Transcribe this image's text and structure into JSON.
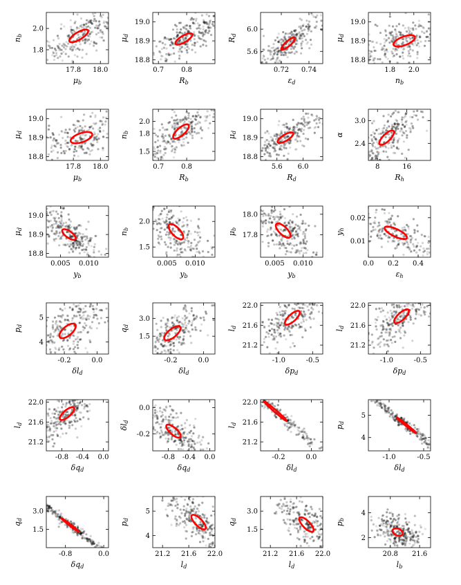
{
  "chart_data": [
    {
      "type": "scatter",
      "title": "",
      "xlabel": "μ_b",
      "ylabel": "n_b",
      "xticks": [
        "17.8",
        "18.0"
      ],
      "yticks": [
        "1.8",
        "2.0"
      ],
      "xlim": [
        17.6,
        18.06
      ],
      "ylim": [
        1.67,
        2.15
      ],
      "center": [
        17.84,
        1.93
      ],
      "ellipse": {
        "rx": 0.07,
        "ry": 0.06,
        "corr": 0.75
      },
      "ellipse_color": "#ff0000"
    },
    {
      "type": "scatter",
      "title": "",
      "xlabel": "R_b",
      "ylabel": "μ_d",
      "xticks": [
        "0.7",
        "0.8"
      ],
      "yticks": [
        "18.8",
        "18.9",
        "19.0"
      ],
      "xlim": [
        0.68,
        0.9
      ],
      "ylim": [
        18.78,
        19.05
      ],
      "center": [
        0.79,
        18.91
      ],
      "ellipse": {
        "rx": 0.03,
        "ry": 0.03,
        "corr": 0.75
      },
      "ellipse_color": "#ff0000"
    },
    {
      "type": "scatter",
      "title": "",
      "xlabel": "ε_d",
      "ylabel": "R_d",
      "xticks": [
        "0.72",
        "0.74"
      ],
      "yticks": [
        "5.6",
        "6.0"
      ],
      "xlim": [
        0.705,
        0.75
      ],
      "ylim": [
        5.38,
        6.3
      ],
      "center": [
        0.725,
        5.74
      ],
      "ellipse": {
        "rx": 0.005,
        "ry": 0.11,
        "corr": 0.85
      },
      "ellipse_color": "#ff0000"
    },
    {
      "type": "scatter",
      "title": "",
      "xlabel": "n_b",
      "ylabel": "μ_d",
      "xticks": [
        "1.8",
        "2.0"
      ],
      "yticks": [
        "18.8",
        "18.9",
        "19.0"
      ],
      "xlim": [
        1.62,
        2.14
      ],
      "ylim": [
        18.78,
        19.05
      ],
      "center": [
        1.92,
        18.9
      ],
      "ellipse": {
        "rx": 0.09,
        "ry": 0.03,
        "corr": 0.6
      },
      "ellipse_color": "#ff0000"
    },
    {
      "type": "scatter",
      "title": "",
      "xlabel": "μ_b",
      "ylabel": "μ_d",
      "xticks": [
        "17.8",
        "18.0"
      ],
      "yticks": [
        "18.8",
        "18.9",
        "19.0"
      ],
      "xlim": [
        17.6,
        18.06
      ],
      "ylim": [
        18.78,
        19.05
      ],
      "center": [
        17.86,
        18.9
      ],
      "ellipse": {
        "rx": 0.08,
        "ry": 0.03,
        "corr": 0.55
      },
      "ellipse_color": "#ff0000"
    },
    {
      "type": "scatter",
      "title": "",
      "xlabel": "R_b",
      "ylabel": "n_b",
      "xticks": [
        "0.7",
        "0.8"
      ],
      "yticks": [
        "1.5",
        "1.8",
        "2.0"
      ],
      "xlim": [
        0.68,
        0.9
      ],
      "ylim": [
        1.35,
        2.2
      ],
      "center": [
        0.78,
        1.83
      ],
      "ellipse": {
        "rx": 0.028,
        "ry": 0.12,
        "corr": 0.75
      },
      "ellipse_color": "#ff0000"
    },
    {
      "type": "scatter",
      "title": "",
      "xlabel": "R_d",
      "ylabel": "μ_d",
      "xticks": [
        "5.6",
        "6.0"
      ],
      "yticks": [
        "18.8",
        "18.9",
        "19.0"
      ],
      "xlim": [
        5.35,
        6.3
      ],
      "ylim": [
        18.78,
        19.05
      ],
      "center": [
        5.73,
        18.9
      ],
      "ellipse": {
        "rx": 0.12,
        "ry": 0.028,
        "corr": 0.75
      },
      "ellipse_color": "#ff0000"
    },
    {
      "type": "scatter",
      "title": "",
      "xlabel": "R_h",
      "ylabel": "α",
      "xticks": [
        "8",
        "16"
      ],
      "yticks": [
        "2.4",
        "3.0"
      ],
      "xlim": [
        5.5,
        22.5
      ],
      "ylim": [
        1.95,
        3.3
      ],
      "center": [
        10.5,
        2.55
      ],
      "ellipse": {
        "rx": 2.0,
        "ry": 0.19,
        "corr": 0.75
      },
      "ellipse_color": "#ff0000"
    },
    {
      "type": "scatter",
      "title": "",
      "xlabel": "y_b",
      "ylabel": "μ_d",
      "xticks": [
        "0.005",
        "0.010"
      ],
      "yticks": [
        "18.8",
        "18.9",
        "19.0"
      ],
      "xlim": [
        0.0025,
        0.0135
      ],
      "ylim": [
        18.78,
        19.05
      ],
      "center": [
        0.0065,
        18.9
      ],
      "ellipse": {
        "rx": 0.0012,
        "ry": 0.028,
        "corr": -0.7
      },
      "ellipse_color": "#ff0000"
    },
    {
      "type": "scatter",
      "title": "",
      "xlabel": "y_b",
      "ylabel": "n_b",
      "xticks": [
        "0.005",
        "0.010"
      ],
      "yticks": [
        "1.5",
        "2.0"
      ],
      "xlim": [
        0.0025,
        0.0135
      ],
      "ylim": [
        1.3,
        2.3
      ],
      "center": [
        0.0066,
        1.8
      ],
      "ellipse": {
        "rx": 0.0013,
        "ry": 0.15,
        "corr": -0.7
      },
      "ellipse_color": "#ff0000"
    },
    {
      "type": "scatter",
      "title": "",
      "xlabel": "y_b",
      "ylabel": "μ_b",
      "xticks": [
        "0.005",
        "0.010"
      ],
      "yticks": [
        "17.8",
        "18.0"
      ],
      "xlim": [
        0.0025,
        0.0135
      ],
      "ylim": [
        17.58,
        18.08
      ],
      "center": [
        0.0065,
        17.84
      ],
      "ellipse": {
        "rx": 0.0013,
        "ry": 0.07,
        "corr": -0.7
      },
      "ellipse_color": "#ff0000"
    },
    {
      "type": "scatter",
      "title": "",
      "xlabel": "ε_h",
      "ylabel": "y_h",
      "xticks": [
        "0.0",
        "0.2",
        "0.4"
      ],
      "yticks": [
        "0.01",
        "0.02"
      ],
      "xlim": [
        0.0,
        0.5
      ],
      "ylim": [
        0.003,
        0.025
      ],
      "center": [
        0.22,
        0.0135
      ],
      "ellipse": {
        "rx": 0.09,
        "ry": 0.0027,
        "corr": -0.75
      },
      "ellipse_color": "#ff0000"
    },
    {
      "type": "scatter",
      "title": "",
      "xlabel": "δl_d",
      "ylabel": "p_d",
      "xticks": [
        "-0.2",
        "0.0"
      ],
      "yticks": [
        "4",
        "5"
      ],
      "xlim": [
        -0.31,
        0.07
      ],
      "ylim": [
        3.5,
        5.6
      ],
      "center": [
        -0.18,
        4.45
      ],
      "ellipse": {
        "rx": 0.05,
        "ry": 0.3,
        "corr": 0.65
      },
      "ellipse_color": "#ff0000"
    },
    {
      "type": "scatter",
      "title": "",
      "xlabel": "δl_d",
      "ylabel": "q_d",
      "xticks": [
        "-0.2",
        "0.0"
      ],
      "yticks": [
        "1.5",
        "3.0"
      ],
      "xlim": [
        -0.31,
        0.07
      ],
      "ylim": [
        0.0,
        4.3
      ],
      "center": [
        -0.19,
        1.75
      ],
      "ellipse": {
        "rx": 0.05,
        "ry": 0.6,
        "corr": 0.7
      },
      "ellipse_color": "#ff0000"
    },
    {
      "type": "scatter",
      "title": "",
      "xlabel": "δp_d",
      "ylabel": "l_d",
      "xticks": [
        "-1.0",
        "-0.5"
      ],
      "yticks": [
        "21.2",
        "21.6",
        "22.0"
      ],
      "xlim": [
        -1.27,
        -0.35
      ],
      "ylim": [
        21.02,
        22.05
      ],
      "center": [
        -0.8,
        21.75
      ],
      "ellipse": {
        "rx": 0.11,
        "ry": 0.14,
        "corr": 0.75
      },
      "ellipse_color": "#ff0000"
    },
    {
      "type": "scatter",
      "title": "",
      "xlabel": "δp_d",
      "ylabel": "l_d",
      "xticks": [
        "-1.0",
        "-0.5"
      ],
      "yticks": [
        "21.2",
        "21.6",
        "22.0"
      ],
      "xlim": [
        -1.27,
        -0.35
      ],
      "ylim": [
        21.02,
        22.05
      ],
      "center": [
        -0.78,
        21.78
      ],
      "ellipse": {
        "rx": 0.11,
        "ry": 0.14,
        "corr": 0.75
      },
      "ellipse_color": "#ff0000"
    },
    {
      "type": "scatter",
      "title": "",
      "xlabel": "δq_d",
      "ylabel": "l_d",
      "xticks": [
        "-0.8",
        "-0.4",
        "0.0"
      ],
      "yticks": [
        "21.2",
        "21.6",
        "22.0"
      ],
      "xlim": [
        -1.1,
        0.1
      ],
      "ylim": [
        21.02,
        22.05
      ],
      "center": [
        -0.7,
        21.77
      ],
      "ellipse": {
        "rx": 0.14,
        "ry": 0.13,
        "corr": 0.75
      },
      "ellipse_color": "#ff0000"
    },
    {
      "type": "scatter",
      "title": "",
      "xlabel": "δq_d",
      "ylabel": "δl_d",
      "xticks": [
        "-0.8",
        "-0.4",
        "0.0"
      ],
      "yticks": [
        "-0.2",
        "0.0"
      ],
      "xlim": [
        -1.1,
        0.1
      ],
      "ylim": [
        -0.33,
        0.06
      ],
      "center": [
        -0.7,
        -0.18
      ],
      "ellipse": {
        "rx": 0.14,
        "ry": 0.05,
        "corr": -0.75
      },
      "ellipse_color": "#ff0000"
    },
    {
      "type": "scatter",
      "title": "",
      "xlabel": "δl_d",
      "ylabel": "l_d",
      "xticks": [
        "-0.2",
        "0.0"
      ],
      "yticks": [
        "21.2",
        "21.6",
        "22.0"
      ],
      "xlim": [
        -0.31,
        0.07
      ],
      "ylim": [
        21.02,
        22.05
      ],
      "center": [
        -0.22,
        21.82
      ],
      "ellipse": {
        "rx": 0.07,
        "ry": 0.2,
        "corr": -0.99
      },
      "ellipse_color": "#ff0000"
    },
    {
      "type": "scatter",
      "title": "",
      "xlabel": "δl_d",
      "ylabel": "p_d",
      "xticks": [
        "-1.0",
        "-0.5"
      ],
      "yticks": [
        "4",
        "5"
      ],
      "xlim": [
        -1.3,
        -0.4
      ],
      "ylim": [
        3.4,
        5.7
      ],
      "center": [
        -0.75,
        4.55
      ],
      "ellipse": {
        "rx": 0.14,
        "ry": 0.35,
        "corr": -0.99
      },
      "ellipse_color": "#ff0000"
    },
    {
      "type": "scatter",
      "title": "",
      "xlabel": "δq_d",
      "ylabel": "q_d",
      "xticks": [
        "-0.8",
        "0.0"
      ],
      "yticks": [
        "1.5",
        "3.0"
      ],
      "xlim": [
        -1.2,
        0.1
      ],
      "ylim": [
        0.0,
        4.2
      ],
      "center": [
        -0.7,
        1.85
      ],
      "ellipse": {
        "rx": 0.18,
        "ry": 0.55,
        "corr": -0.99
      },
      "ellipse_color": "#ff0000"
    },
    {
      "type": "scatter",
      "title": "",
      "xlabel": "l_d",
      "ylabel": "p_d",
      "xticks": [
        "21.2",
        "21.6",
        "22.0"
      ],
      "yticks": [
        "4",
        "5"
      ],
      "xlim": [
        21.05,
        22.0
      ],
      "ylim": [
        3.5,
        5.6
      ],
      "center": [
        21.75,
        4.55
      ],
      "ellipse": {
        "rx": 0.11,
        "ry": 0.3,
        "corr": -0.75
      },
      "ellipse_color": "#ff0000"
    },
    {
      "type": "scatter",
      "title": "",
      "xlabel": "l_d",
      "ylabel": "q_d",
      "xticks": [
        "21.2",
        "21.6",
        "22.0"
      ],
      "yticks": [
        "1.5",
        "3.0"
      ],
      "xlim": [
        21.05,
        22.0
      ],
      "ylim": [
        0.0,
        4.2
      ],
      "center": [
        21.75,
        1.9
      ],
      "ellipse": {
        "rx": 0.11,
        "ry": 0.6,
        "corr": -0.75
      },
      "ellipse_color": "#ff0000"
    },
    {
      "type": "scatter",
      "title": "",
      "xlabel": "l_b",
      "ylabel": "p_b",
      "xticks": [
        "20.8",
        "21.6"
      ],
      "yticks": [
        "2",
        "4"
      ],
      "xlim": [
        20.2,
        21.9
      ],
      "ylim": [
        1.2,
        5.3
      ],
      "center": [
        21.0,
        2.45
      ],
      "ellipse": {
        "rx": 0.14,
        "ry": 0.3,
        "corr": -0.3
      },
      "ellipse_color": "#ff0000"
    }
  ]
}
